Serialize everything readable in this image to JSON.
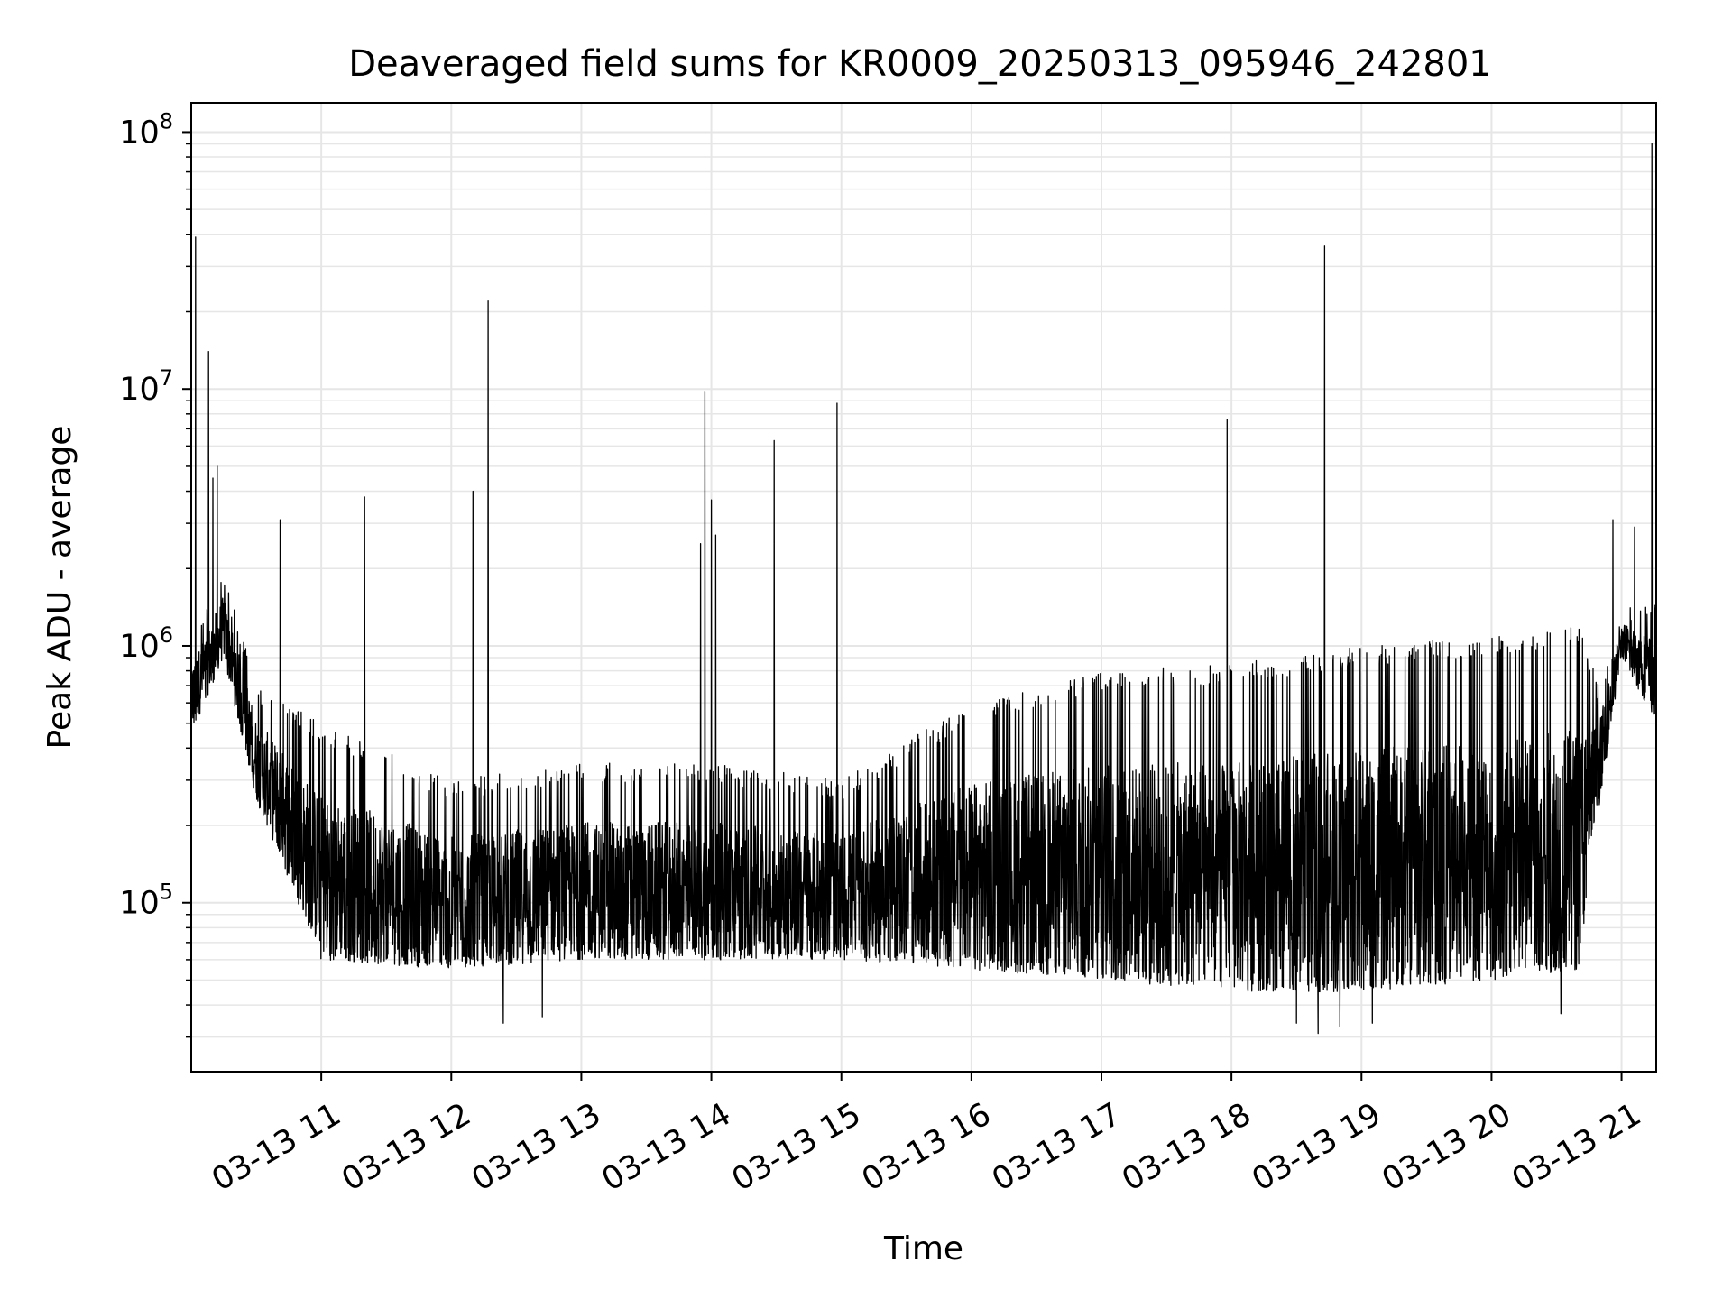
{
  "chart_data": {
    "type": "line",
    "title": "Deaveraged field sums for KR0009_20250313_095946_242801",
    "xlabel": "Time",
    "ylabel": "Peak ADU - average",
    "yscale": "log",
    "ylim": [
      22000,
      130000000
    ],
    "xlim": [
      "2025-03-13 10:00",
      "2025-03-13 21:16"
    ],
    "grid": true,
    "line_color": "#000000",
    "grid_color": "#e6e6e6",
    "x_ticks": [
      {
        "label": "03-13 11",
        "time": "2025-03-13 11:00"
      },
      {
        "label": "03-13 12",
        "time": "2025-03-13 12:00"
      },
      {
        "label": "03-13 13",
        "time": "2025-03-13 13:00"
      },
      {
        "label": "03-13 14",
        "time": "2025-03-13 14:00"
      },
      {
        "label": "03-13 15",
        "time": "2025-03-13 15:00"
      },
      {
        "label": "03-13 16",
        "time": "2025-03-13 16:00"
      },
      {
        "label": "03-13 17",
        "time": "2025-03-13 17:00"
      },
      {
        "label": "03-13 18",
        "time": "2025-03-13 18:00"
      },
      {
        "label": "03-13 19",
        "time": "2025-03-13 19:00"
      },
      {
        "label": "03-13 20",
        "time": "2025-03-13 20:00"
      },
      {
        "label": "03-13 21",
        "time": "2025-03-13 21:00"
      }
    ],
    "y_ticks": [
      {
        "base": "10",
        "exp": "5",
        "value": 100000
      },
      {
        "base": "10",
        "exp": "6",
        "value": 1000000
      },
      {
        "base": "10",
        "exp": "7",
        "value": 10000000
      },
      {
        "base": "10",
        "exp": "8",
        "value": 100000000
      }
    ],
    "baseline": [
      {
        "time": "2025-03-13 10:00",
        "low": 450000,
        "high": 1100000
      },
      {
        "time": "2025-03-13 10:15",
        "low": 900000,
        "high": 2000000
      },
      {
        "time": "2025-03-13 10:30",
        "low": 250000,
        "high": 700000
      },
      {
        "time": "2025-03-13 11:00",
        "low": 60000,
        "high": 500000
      },
      {
        "time": "2025-03-13 12:00",
        "low": 55000,
        "high": 300000
      },
      {
        "time": "2025-03-13 13:00",
        "low": 60000,
        "high": 350000
      },
      {
        "time": "2025-03-13 14:00",
        "low": 60000,
        "high": 350000
      },
      {
        "time": "2025-03-13 15:00",
        "low": 60000,
        "high": 300000
      },
      {
        "time": "2025-03-13 16:00",
        "low": 55000,
        "high": 600000
      },
      {
        "time": "2025-03-13 17:00",
        "low": 50000,
        "high": 800000
      },
      {
        "time": "2025-03-13 18:00",
        "low": 45000,
        "high": 850000
      },
      {
        "time": "2025-03-13 19:00",
        "low": 45000,
        "high": 1000000
      },
      {
        "time": "2025-03-13 20:00",
        "low": 50000,
        "high": 1100000
      },
      {
        "time": "2025-03-13 20:40",
        "low": 55000,
        "high": 1200000
      },
      {
        "time": "2025-03-13 20:50",
        "low": 250000,
        "high": 700000
      },
      {
        "time": "2025-03-13 21:00",
        "low": 900000,
        "high": 1400000
      },
      {
        "time": "2025-03-13 21:16",
        "low": 500000,
        "high": 1500000
      }
    ],
    "spikes": [
      {
        "time": "2025-03-13 10:02",
        "value": 39000000
      },
      {
        "time": "2025-03-13 10:08",
        "value": 14000000
      },
      {
        "time": "2025-03-13 10:10",
        "value": 4500000
      },
      {
        "time": "2025-03-13 10:12",
        "value": 5000000
      },
      {
        "time": "2025-03-13 10:41",
        "value": 3100000
      },
      {
        "time": "2025-03-13 11:20",
        "value": 3800000
      },
      {
        "time": "2025-03-13 12:10",
        "value": 4000000
      },
      {
        "time": "2025-03-13 12:17",
        "value": 22000000
      },
      {
        "time": "2025-03-13 13:55",
        "value": 2500000
      },
      {
        "time": "2025-03-13 13:57",
        "value": 9800000
      },
      {
        "time": "2025-03-13 14:00",
        "value": 3700000
      },
      {
        "time": "2025-03-13 14:02",
        "value": 2700000
      },
      {
        "time": "2025-03-13 14:29",
        "value": 6300000
      },
      {
        "time": "2025-03-13 14:58",
        "value": 8800000
      },
      {
        "time": "2025-03-13 17:58",
        "value": 7600000
      },
      {
        "time": "2025-03-13 18:43",
        "value": 36000000
      },
      {
        "time": "2025-03-13 20:56",
        "value": 3100000
      },
      {
        "time": "2025-03-13 21:06",
        "value": 2900000
      },
      {
        "time": "2025-03-13 21:14",
        "value": 90000000
      }
    ],
    "dips": [
      {
        "time": "2025-03-13 12:24",
        "value": 34000
      },
      {
        "time": "2025-03-13 12:42",
        "value": 36000
      },
      {
        "time": "2025-03-13 18:30",
        "value": 34000
      },
      {
        "time": "2025-03-13 18:40",
        "value": 31000
      },
      {
        "time": "2025-03-13 18:50",
        "value": 33000
      },
      {
        "time": "2025-03-13 19:05",
        "value": 34000
      },
      {
        "time": "2025-03-13 20:32",
        "value": 37000
      }
    ]
  }
}
